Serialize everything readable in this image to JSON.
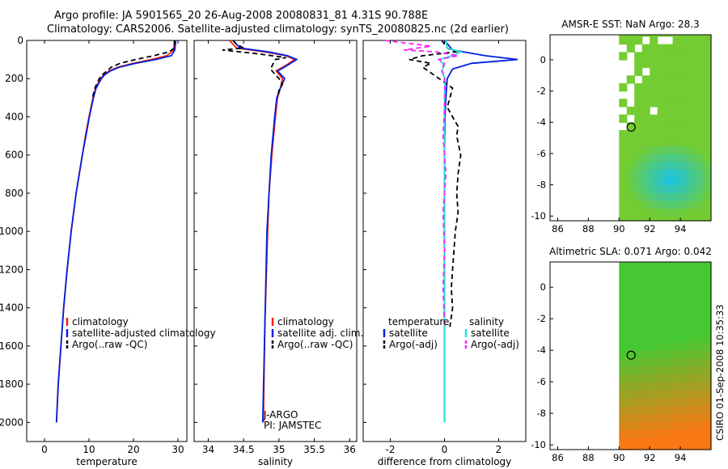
{
  "header": {
    "line1": "Argo profile: JA 5901565_20 26-Aug-2008 20080831_81 4.31S 90.788E",
    "line2": "Climatology: CARS2006. Satellite-adjusted climatology: synTS_20080825.nc (2d earlier)"
  },
  "side_label": "CSIRO 01-Sep-2008 10:35:33",
  "colors": {
    "climatology": "#ff2000",
    "satellite": "#0020e0",
    "argo": "#000000",
    "sat_salinity": "#20e0e0",
    "argo_salinity_adj": "#ff20ff"
  },
  "chart_data": [
    {
      "id": "temperature",
      "type": "line",
      "xlabel": "temperature",
      "ylabel": "",
      "xlim": [
        -4,
        32
      ],
      "ylim": [
        2100,
        0
      ],
      "xticks": [
        0,
        10,
        20,
        30
      ],
      "yticks": [
        0,
        200,
        400,
        600,
        800,
        1000,
        1200,
        1400,
        1600,
        1800,
        2000
      ],
      "legend": [
        "climatology",
        "satellite-adjusted climatology",
        "Argo(..raw -QC)"
      ],
      "series": [
        {
          "name": "climatology",
          "color": "#ff2000",
          "dash": "",
          "depth": [
            0,
            50,
            80,
            100,
            120,
            140,
            160,
            180,
            200,
            250,
            300,
            400,
            500,
            600,
            800,
            1000,
            1200,
            1400,
            1600,
            1800,
            2000
          ],
          "values": [
            29.3,
            29.0,
            27.5,
            24,
            20,
            16.5,
            14.5,
            13.3,
            12.6,
            11.5,
            10.9,
            10.0,
            9.2,
            8.5,
            7.1,
            6.0,
            5.1,
            4.3,
            3.7,
            3.1,
            2.7
          ]
        },
        {
          "name": "satellite-adjusted climatology",
          "color": "#0020e0",
          "dash": "",
          "depth": [
            0,
            50,
            80,
            100,
            120,
            140,
            160,
            180,
            200,
            250,
            300,
            400,
            500,
            600,
            800,
            1000,
            1200,
            1400,
            1600,
            1800,
            2000
          ],
          "values": [
            29.5,
            29.3,
            28.5,
            25,
            20.5,
            16.8,
            14.8,
            13.5,
            12.8,
            11.6,
            11.0,
            10.1,
            9.3,
            8.5,
            7.1,
            6.0,
            5.1,
            4.3,
            3.7,
            3.1,
            2.7
          ]
        },
        {
          "name": "Argo(..raw -QC)",
          "color": "#000000",
          "dash": "6,4",
          "depth": [
            0,
            40,
            60,
            80,
            100,
            120,
            140,
            160,
            180,
            200,
            250,
            300
          ],
          "values": [
            29.2,
            29.2,
            28.0,
            24.5,
            20.5,
            17.0,
            15.0,
            14.0,
            13.0,
            12.3,
            11.3,
            10.8
          ]
        }
      ]
    },
    {
      "id": "salinity",
      "type": "line",
      "xlabel": "salinity",
      "ylabel": "",
      "xlim": [
        33.8,
        36.1
      ],
      "ylim": [
        2100,
        0
      ],
      "xticks": [
        34,
        34.5,
        35,
        35.5,
        36
      ],
      "yticks": [],
      "legend": [
        "climatology",
        "satellite adj. clim.",
        "Argo(..raw -QC)"
      ],
      "notes": [
        "J-ARGO",
        "PI: JAMSTEC"
      ],
      "series": [
        {
          "name": "climatology",
          "color": "#ff2000",
          "dash": "",
          "depth": [
            0,
            40,
            60,
            80,
            100,
            130,
            160,
            200,
            250,
            300,
            400,
            600,
            800,
            1000,
            1500,
            2000
          ],
          "values": [
            34.3,
            34.4,
            34.8,
            35.1,
            35.22,
            35.1,
            34.96,
            35.05,
            35.02,
            34.98,
            34.95,
            34.9,
            34.86,
            34.84,
            34.8,
            34.78
          ]
        },
        {
          "name": "satellite adj. clim.",
          "color": "#0020e0",
          "dash": "",
          "depth": [
            0,
            40,
            60,
            80,
            100,
            130,
            160,
            200,
            250,
            300,
            400,
            600,
            800,
            1000,
            1500,
            2000
          ],
          "values": [
            34.35,
            34.45,
            34.85,
            35.12,
            35.25,
            35.12,
            34.98,
            35.08,
            35.02,
            34.97,
            34.94,
            34.89,
            34.86,
            34.83,
            34.8,
            34.77
          ]
        },
        {
          "name": "Argo(..raw -QC)",
          "color": "#000000",
          "dash": "6,4",
          "depth": [
            0,
            20,
            40,
            50,
            70,
            90,
            100,
            120,
            150,
            180,
            200,
            230,
            260,
            300
          ],
          "values": [
            34.35,
            34.4,
            34.5,
            34.2,
            34.7,
            35.1,
            34.95,
            34.92,
            34.88,
            34.95,
            35.0,
            35.05,
            35.0,
            34.98
          ]
        }
      ]
    },
    {
      "id": "difference",
      "type": "line",
      "xlabel": "difference from climatology",
      "ylabel": "",
      "xlim": [
        -3.0,
        3.0
      ],
      "ylim": [
        2100,
        0
      ],
      "xticks": [
        -2,
        0,
        2
      ],
      "yticks": [],
      "legend_left_title": "temperature",
      "legend_right_title": "salinity",
      "legend": [
        "satellite",
        "Argo(-adj)",
        "satellite",
        "Argo(-adj)"
      ],
      "series": [
        {
          "name": "temperature satellite",
          "color": "#0020e0",
          "dash": "",
          "depth": [
            0,
            50,
            80,
            100,
            120,
            150,
            200,
            300,
            400,
            600,
            800,
            1000,
            1500,
            2000
          ],
          "values": [
            0.0,
            0.3,
            1.5,
            2.7,
            1.0,
            0.3,
            0.1,
            0.05,
            0.02,
            0.0,
            0.0,
            0.0,
            0.0,
            0.0
          ]
        },
        {
          "name": "temperature Argo(-adj)",
          "color": "#000000",
          "dash": "6,4",
          "depth": [
            0,
            40,
            60,
            80,
            100,
            120,
            140,
            160,
            200,
            250,
            300,
            350,
            400,
            450,
            500,
            600,
            700,
            800,
            900,
            1000,
            1100,
            1200,
            1300,
            1400,
            1500
          ],
          "values": [
            -0.1,
            0.1,
            0.4,
            -0.8,
            -1.3,
            -0.5,
            -0.8,
            -0.6,
            -0.2,
            0.3,
            0.2,
            0.1,
            0.3,
            0.5,
            0.45,
            0.6,
            0.5,
            0.45,
            0.5,
            0.4,
            0.35,
            0.3,
            0.25,
            0.3,
            0.2
          ]
        },
        {
          "name": "salinity satellite",
          "color": "#20e0e0",
          "dash": "",
          "depth": [
            0,
            40,
            60,
            80,
            100,
            130,
            160,
            200,
            300,
            500,
            800,
            1000,
            1500,
            2000
          ],
          "values": [
            0.05,
            0.1,
            0.6,
            0.3,
            -0.2,
            0.0,
            -0.1,
            0.02,
            0.0,
            0.0,
            0.0,
            0.0,
            0.0,
            0.0
          ]
        },
        {
          "name": "salinity Argo(-adj)",
          "color": "#ff20ff",
          "dash": "6,4",
          "depth": [
            0,
            30,
            50,
            60,
            80,
            100,
            120,
            150,
            200,
            300,
            500,
            700,
            900,
            1100,
            1300,
            1500
          ],
          "values": [
            -2.2,
            -0.5,
            -1.5,
            -0.3,
            0.5,
            -0.2,
            0.0,
            -0.1,
            0.0,
            0.02,
            -0.05,
            0.05,
            -0.05,
            0.0,
            -0.05,
            0.0
          ]
        }
      ]
    },
    {
      "id": "sst_map",
      "type": "heatmap",
      "title": "AMSR-E SST: NaN Argo: 28.3",
      "xlim": [
        85.5,
        96
      ],
      "ylim": [
        -10.3,
        1.6
      ],
      "xticks": [
        86,
        88,
        90,
        92,
        94
      ],
      "yticks": [
        0,
        -2,
        -4,
        -6,
        -8,
        -10
      ],
      "float_position": {
        "lon": 90.788,
        "lat": -4.31
      }
    },
    {
      "id": "sla_map",
      "type": "heatmap",
      "title": "Altimetric SLA: 0.071 Argo: 0.042",
      "xlim": [
        85.5,
        96
      ],
      "ylim": [
        -10.3,
        1.6
      ],
      "xticks": [
        86,
        88,
        90,
        92,
        94
      ],
      "yticks": [
        0,
        -2,
        -4,
        -6,
        -8,
        -10
      ],
      "float_position": {
        "lon": 90.788,
        "lat": -4.31
      }
    }
  ]
}
